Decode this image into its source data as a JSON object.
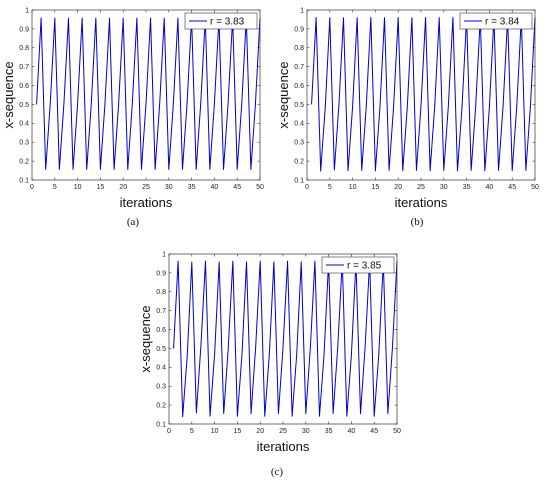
{
  "chart_data": [
    {
      "type": "line",
      "caption": "(a)",
      "xlabel": "iterations",
      "ylabel": "x-sequence",
      "xlim": [
        0,
        50
      ],
      "ylim": [
        0.1,
        1
      ],
      "xticks": [
        "0",
        "5",
        "10",
        "15",
        "20",
        "25",
        "30",
        "35",
        "40",
        "45",
        "50"
      ],
      "yticks": [
        "0.1",
        "0.2",
        "0.3",
        "0.4",
        "0.5",
        "0.6",
        "0.7",
        "0.8",
        "0.9",
        "1"
      ],
      "legend": "top-right",
      "line_color": "#0000cc",
      "series": [
        {
          "name": "r = 3.83",
          "x": [
            1,
            2,
            3,
            4,
            5,
            6,
            7,
            8,
            9,
            10,
            11,
            12,
            13,
            14,
            15,
            16,
            17,
            18,
            19,
            20,
            21,
            22,
            23,
            24,
            25,
            26,
            27,
            28,
            29,
            30,
            31,
            32,
            33,
            34,
            35,
            36,
            37,
            38,
            39,
            40,
            41,
            42,
            43,
            44,
            45,
            46,
            47,
            48,
            49,
            50
          ],
          "y": [
            0.5,
            0.9575,
            0.156,
            0.504,
            0.957,
            0.156,
            0.504,
            0.957,
            0.156,
            0.504,
            0.957,
            0.156,
            0.504,
            0.957,
            0.156,
            0.504,
            0.957,
            0.156,
            0.504,
            0.957,
            0.156,
            0.504,
            0.957,
            0.156,
            0.504,
            0.957,
            0.156,
            0.504,
            0.957,
            0.156,
            0.504,
            0.957,
            0.156,
            0.504,
            0.957,
            0.156,
            0.504,
            0.957,
            0.156,
            0.504,
            0.957,
            0.156,
            0.504,
            0.957,
            0.156,
            0.504,
            0.957,
            0.156,
            0.504,
            0.957
          ]
        }
      ]
    },
    {
      "type": "line",
      "caption": "(b)",
      "xlabel": "iterations",
      "ylabel": "x-sequence",
      "xlim": [
        0,
        50
      ],
      "ylim": [
        0.1,
        1
      ],
      "xticks": [
        "0",
        "5",
        "10",
        "15",
        "20",
        "25",
        "30",
        "35",
        "40",
        "45",
        "50"
      ],
      "yticks": [
        "0.1",
        "0.2",
        "0.3",
        "0.4",
        "0.5",
        "0.6",
        "0.7",
        "0.8",
        "0.9",
        "1"
      ],
      "legend": "top-right",
      "line_color": "#0000cc",
      "series": [
        {
          "name": "r = 3.84",
          "x": [
            1,
            2,
            3,
            4,
            5,
            6,
            7,
            8,
            9,
            10,
            11,
            12,
            13,
            14,
            15,
            16,
            17,
            18,
            19,
            20,
            21,
            22,
            23,
            24,
            25,
            26,
            27,
            28,
            29,
            30,
            31,
            32,
            33,
            34,
            35,
            36,
            37,
            38,
            39,
            40,
            41,
            42,
            43,
            44,
            45,
            46,
            47,
            48,
            49,
            50
          ],
          "y": [
            0.5,
            0.96,
            0.147,
            0.482,
            0.959,
            0.153,
            0.498,
            0.959,
            0.149,
            0.488,
            0.959,
            0.151,
            0.492,
            0.96,
            0.149,
            0.487,
            0.959,
            0.151,
            0.492,
            0.96,
            0.149,
            0.488,
            0.959,
            0.151,
            0.492,
            0.96,
            0.149,
            0.488,
            0.959,
            0.151,
            0.492,
            0.96,
            0.149,
            0.488,
            0.959,
            0.151,
            0.492,
            0.96,
            0.149,
            0.488,
            0.959,
            0.151,
            0.492,
            0.96,
            0.149,
            0.488,
            0.959,
            0.151,
            0.492,
            0.96
          ]
        }
      ]
    },
    {
      "type": "line",
      "caption": "(c)",
      "xlabel": "iterations",
      "ylabel": "x-sequence",
      "xlim": [
        0,
        50
      ],
      "ylim": [
        0.1,
        1
      ],
      "xticks": [
        "0",
        "5",
        "10",
        "15",
        "20",
        "25",
        "30",
        "35",
        "40",
        "45",
        "50"
      ],
      "yticks": [
        "0.1",
        "0.2",
        "0.3",
        "0.4",
        "0.5",
        "0.6",
        "0.7",
        "0.8",
        "0.9",
        "1"
      ],
      "legend": "top-right",
      "line_color": "#0000cc",
      "series": [
        {
          "name": "r = 3.85",
          "x": [
            1,
            2,
            3,
            4,
            5,
            6,
            7,
            8,
            9,
            10,
            11,
            12,
            13,
            14,
            15,
            16,
            17,
            18,
            19,
            20,
            21,
            22,
            23,
            24,
            25,
            26,
            27,
            28,
            29,
            30,
            31,
            32,
            33,
            34,
            35,
            36,
            37,
            38,
            39,
            40,
            41,
            42,
            43,
            44,
            45,
            46,
            47,
            48,
            49,
            50
          ],
          "y": [
            0.5,
            0.9625,
            0.139,
            0.461,
            0.957,
            0.159,
            0.515,
            0.962,
            0.142,
            0.468,
            0.958,
            0.155,
            0.505,
            0.962,
            0.141,
            0.466,
            0.958,
            0.155,
            0.505,
            0.962,
            0.141,
            0.466,
            0.958,
            0.155,
            0.505,
            0.962,
            0.141,
            0.466,
            0.958,
            0.155,
            0.505,
            0.962,
            0.141,
            0.466,
            0.958,
            0.155,
            0.505,
            0.962,
            0.141,
            0.466,
            0.958,
            0.155,
            0.505,
            0.962,
            0.141,
            0.466,
            0.958,
            0.155,
            0.505,
            0.962
          ]
        }
      ]
    }
  ]
}
